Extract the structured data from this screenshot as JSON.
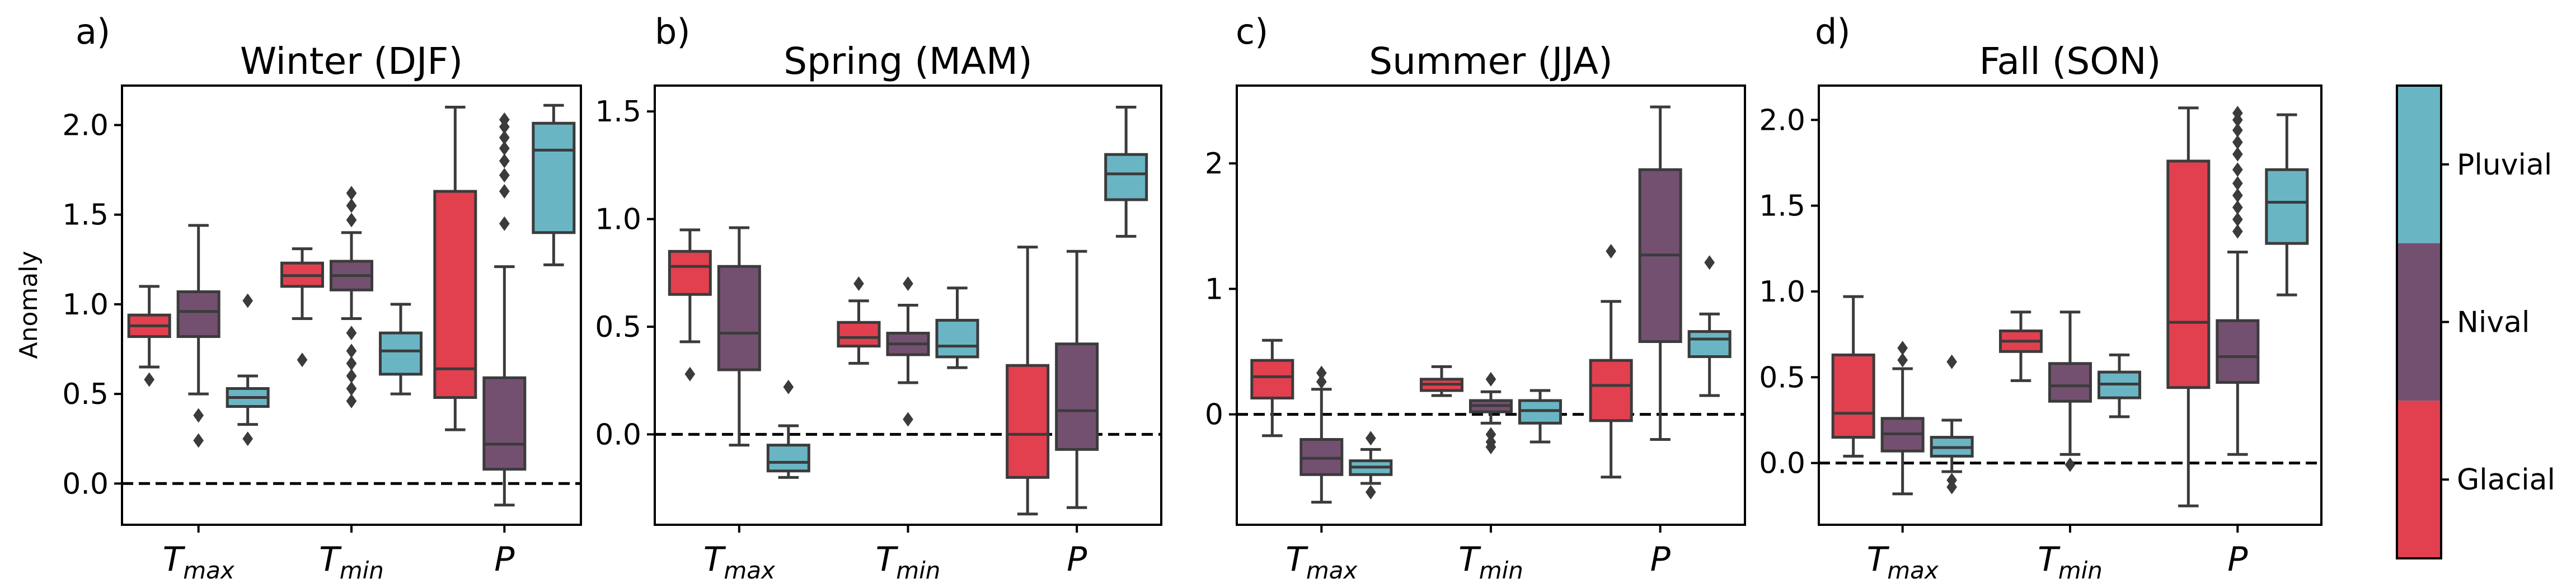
{
  "ylabel": "Anomaly",
  "colors": {
    "Glacial": "#e2404f",
    "Nival": "#735070",
    "Pluvial": "#6ab5c4",
    "line": "#3b3b3b"
  },
  "colorbar": {
    "labels": [
      "Pluvial",
      "Nival",
      "Glacial"
    ]
  },
  "chart_data": [
    {
      "type": "box",
      "letter": "a)",
      "title": "Winter (DJF)",
      "groups": [
        {
          "main": "T",
          "sub": "max"
        },
        {
          "main": "T",
          "sub": "min"
        },
        {
          "main": "P",
          "sub": ""
        }
      ],
      "hues": [
        "Glacial",
        "Nival",
        "Pluvial"
      ],
      "ylim": [
        -0.23,
        2.22
      ],
      "yticks": [
        0.0,
        0.5,
        1.0,
        1.5,
        2.0
      ],
      "ytick_labels": [
        "0.0",
        "0.5",
        "1.0",
        "1.5",
        "2.0"
      ],
      "reference_line": 0,
      "boxes": [
        {
          "group": 0,
          "hue": 0,
          "whislo": 0.65,
          "q1": 0.82,
          "med": 0.88,
          "q3": 0.94,
          "whishi": 1.1,
          "fliers": [
            0.58
          ]
        },
        {
          "group": 0,
          "hue": 1,
          "whislo": 0.5,
          "q1": 0.82,
          "med": 0.96,
          "q3": 1.07,
          "whishi": 1.44,
          "fliers": [
            0.24,
            0.38
          ]
        },
        {
          "group": 0,
          "hue": 2,
          "whislo": 0.33,
          "q1": 0.43,
          "med": 0.48,
          "q3": 0.53,
          "whishi": 0.6,
          "fliers": [
            0.25,
            1.02
          ]
        },
        {
          "group": 1,
          "hue": 0,
          "whislo": 0.92,
          "q1": 1.1,
          "med": 1.16,
          "q3": 1.23,
          "whishi": 1.31,
          "fliers": [
            0.69
          ]
        },
        {
          "group": 1,
          "hue": 1,
          "whislo": 0.92,
          "q1": 1.08,
          "med": 1.16,
          "q3": 1.24,
          "whishi": 1.4,
          "fliers": [
            0.46,
            0.53,
            0.6,
            0.67,
            0.74,
            0.84,
            1.47,
            1.55,
            1.62
          ]
        },
        {
          "group": 1,
          "hue": 2,
          "whislo": 0.5,
          "q1": 0.61,
          "med": 0.74,
          "q3": 0.84,
          "whishi": 1.0,
          "fliers": []
        },
        {
          "group": 2,
          "hue": 0,
          "whislo": 0.3,
          "q1": 0.48,
          "med": 0.64,
          "q3": 1.63,
          "whishi": 2.1,
          "fliers": []
        },
        {
          "group": 2,
          "hue": 1,
          "whislo": -0.12,
          "q1": 0.08,
          "med": 0.22,
          "q3": 0.59,
          "whishi": 1.21,
          "fliers": [
            1.45,
            1.63,
            1.72,
            1.8,
            1.87,
            1.93,
            1.99,
            2.03
          ]
        },
        {
          "group": 2,
          "hue": 2,
          "whislo": 1.22,
          "q1": 1.4,
          "med": 1.86,
          "q3": 2.01,
          "whishi": 2.11,
          "fliers": []
        }
      ]
    },
    {
      "type": "box",
      "letter": "b)",
      "title": "Spring (MAM)",
      "groups": [
        {
          "main": "T",
          "sub": "max"
        },
        {
          "main": "T",
          "sub": "min"
        },
        {
          "main": "P",
          "sub": ""
        }
      ],
      "hues": [
        "Glacial",
        "Nival",
        "Pluvial"
      ],
      "ylim": [
        -0.42,
        1.62
      ],
      "yticks": [
        0.0,
        0.5,
        1.0,
        1.5
      ],
      "ytick_labels": [
        "0.0",
        "0.5",
        "1.0",
        "1.5"
      ],
      "reference_line": 0,
      "boxes": [
        {
          "group": 0,
          "hue": 0,
          "whislo": 0.43,
          "q1": 0.65,
          "med": 0.78,
          "q3": 0.85,
          "whishi": 0.95,
          "fliers": [
            0.28
          ]
        },
        {
          "group": 0,
          "hue": 1,
          "whislo": -0.05,
          "q1": 0.3,
          "med": 0.47,
          "q3": 0.78,
          "whishi": 0.96,
          "fliers": []
        },
        {
          "group": 0,
          "hue": 2,
          "whislo": -0.2,
          "q1": -0.17,
          "med": -0.13,
          "q3": -0.05,
          "whishi": 0.04,
          "fliers": [
            0.22
          ]
        },
        {
          "group": 1,
          "hue": 0,
          "whislo": 0.33,
          "q1": 0.41,
          "med": 0.45,
          "q3": 0.52,
          "whishi": 0.62,
          "fliers": [
            0.7
          ]
        },
        {
          "group": 1,
          "hue": 1,
          "whislo": 0.24,
          "q1": 0.37,
          "med": 0.42,
          "q3": 0.47,
          "whishi": 0.6,
          "fliers": [
            0.07,
            0.7
          ]
        },
        {
          "group": 1,
          "hue": 2,
          "whislo": 0.31,
          "q1": 0.36,
          "med": 0.41,
          "q3": 0.53,
          "whishi": 0.68,
          "fliers": []
        },
        {
          "group": 2,
          "hue": 0,
          "whislo": -0.37,
          "q1": -0.2,
          "med": 0.0,
          "q3": 0.32,
          "whishi": 0.87,
          "fliers": []
        },
        {
          "group": 2,
          "hue": 1,
          "whislo": -0.34,
          "q1": -0.07,
          "med": 0.11,
          "q3": 0.42,
          "whishi": 0.85,
          "fliers": []
        },
        {
          "group": 2,
          "hue": 2,
          "whislo": 0.92,
          "q1": 1.09,
          "med": 1.21,
          "q3": 1.3,
          "whishi": 1.52,
          "fliers": []
        }
      ]
    },
    {
      "type": "box",
      "letter": "c)",
      "title": "Summer (JJA)",
      "groups": [
        {
          "main": "T",
          "sub": "max"
        },
        {
          "main": "T",
          "sub": "min"
        },
        {
          "main": "P",
          "sub": ""
        }
      ],
      "hues": [
        "Glacial",
        "Nival",
        "Pluvial"
      ],
      "ylim": [
        -0.88,
        2.62
      ],
      "yticks": [
        0,
        1,
        2
      ],
      "ytick_labels": [
        "0",
        "1",
        "2"
      ],
      "reference_line": 0,
      "boxes": [
        {
          "group": 0,
          "hue": 0,
          "whislo": -0.17,
          "q1": 0.13,
          "med": 0.3,
          "q3": 0.43,
          "whishi": 0.59,
          "fliers": []
        },
        {
          "group": 0,
          "hue": 1,
          "whislo": -0.7,
          "q1": -0.48,
          "med": -0.35,
          "q3": -0.2,
          "whishi": 0.2,
          "fliers": [
            0.26,
            0.33
          ]
        },
        {
          "group": 0,
          "hue": 2,
          "whislo": -0.55,
          "q1": -0.48,
          "med": -0.42,
          "q3": -0.37,
          "whishi": -0.28,
          "fliers": [
            -0.19,
            -0.62
          ]
        },
        {
          "group": 1,
          "hue": 0,
          "whislo": 0.15,
          "q1": 0.19,
          "med": 0.24,
          "q3": 0.28,
          "whishi": 0.38,
          "fliers": []
        },
        {
          "group": 1,
          "hue": 1,
          "whislo": -0.07,
          "q1": 0.02,
          "med": 0.07,
          "q3": 0.11,
          "whishi": 0.18,
          "fliers": [
            -0.16,
            -0.22,
            -0.26,
            0.28
          ]
        },
        {
          "group": 1,
          "hue": 2,
          "whislo": -0.22,
          "q1": -0.07,
          "med": 0.03,
          "q3": 0.11,
          "whishi": 0.19,
          "fliers": []
        },
        {
          "group": 2,
          "hue": 0,
          "whislo": -0.5,
          "q1": -0.05,
          "med": 0.23,
          "q3": 0.43,
          "whishi": 0.9,
          "fliers": [
            1.3
          ]
        },
        {
          "group": 2,
          "hue": 1,
          "whislo": -0.2,
          "q1": 0.58,
          "med": 1.27,
          "q3": 1.95,
          "whishi": 2.45,
          "fliers": []
        },
        {
          "group": 2,
          "hue": 2,
          "whislo": 0.15,
          "q1": 0.46,
          "med": 0.6,
          "q3": 0.66,
          "whishi": 0.8,
          "fliers": [
            1.21
          ]
        }
      ]
    },
    {
      "type": "box",
      "letter": "d)",
      "title": "Fall (SON)",
      "groups": [
        {
          "main": "T",
          "sub": "max"
        },
        {
          "main": "T",
          "sub": "min"
        },
        {
          "main": "P",
          "sub": ""
        }
      ],
      "hues": [
        "Glacial",
        "Nival",
        "Pluvial"
      ],
      "ylim": [
        -0.36,
        2.2
      ],
      "yticks": [
        0.0,
        0.5,
        1.0,
        1.5,
        2.0
      ],
      "ytick_labels": [
        "0.0",
        "0.5",
        "1.0",
        "1.5",
        "2.0"
      ],
      "reference_line": 0,
      "boxes": [
        {
          "group": 0,
          "hue": 0,
          "whislo": 0.04,
          "q1": 0.15,
          "med": 0.29,
          "q3": 0.63,
          "whishi": 0.97,
          "fliers": []
        },
        {
          "group": 0,
          "hue": 1,
          "whislo": -0.18,
          "q1": 0.07,
          "med": 0.17,
          "q3": 0.26,
          "whishi": 0.55,
          "fliers": [
            0.6,
            0.67
          ]
        },
        {
          "group": 0,
          "hue": 2,
          "whislo": -0.05,
          "q1": 0.04,
          "med": 0.09,
          "q3": 0.15,
          "whishi": 0.25,
          "fliers": [
            -0.1,
            -0.14,
            0.59
          ]
        },
        {
          "group": 1,
          "hue": 0,
          "whislo": 0.48,
          "q1": 0.65,
          "med": 0.71,
          "q3": 0.77,
          "whishi": 0.88,
          "fliers": []
        },
        {
          "group": 1,
          "hue": 1,
          "whislo": 0.05,
          "q1": 0.36,
          "med": 0.45,
          "q3": 0.58,
          "whishi": 0.88,
          "fliers": [
            -0.01
          ]
        },
        {
          "group": 1,
          "hue": 2,
          "whislo": 0.27,
          "q1": 0.38,
          "med": 0.46,
          "q3": 0.53,
          "whishi": 0.63,
          "fliers": []
        },
        {
          "group": 2,
          "hue": 0,
          "whislo": -0.25,
          "q1": 0.44,
          "med": 0.82,
          "q3": 1.76,
          "whishi": 2.07,
          "fliers": []
        },
        {
          "group": 2,
          "hue": 1,
          "whislo": 0.05,
          "q1": 0.47,
          "med": 0.62,
          "q3": 0.83,
          "whishi": 1.23,
          "fliers": [
            1.35,
            1.42,
            1.49,
            1.56,
            1.63,
            1.71,
            1.8,
            1.87,
            1.94,
            2.0,
            2.04
          ]
        },
        {
          "group": 2,
          "hue": 2,
          "whislo": 0.98,
          "q1": 1.28,
          "med": 1.52,
          "q3": 1.71,
          "whishi": 2.03,
          "fliers": []
        }
      ]
    }
  ]
}
